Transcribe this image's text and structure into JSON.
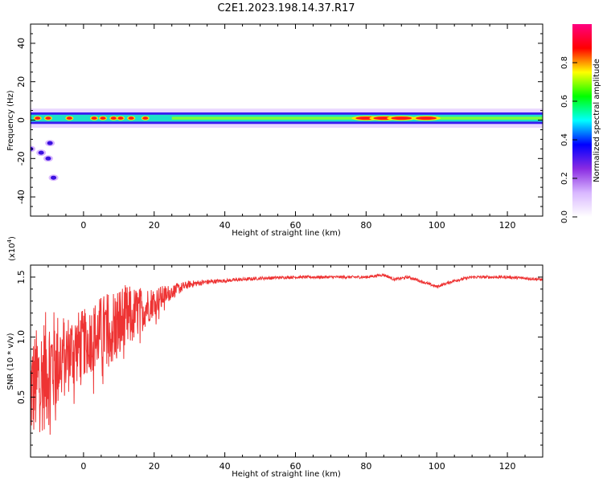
{
  "title": "C2E1.2023.198.14.37.R17",
  "chart_data": [
    {
      "type": "heatmap",
      "xlabel": "Height of straight line (km)",
      "ylabel": "Frequency (Hz)",
      "xlim": [
        -15,
        130
      ],
      "ylim": [
        -50,
        50
      ],
      "xticks": [
        0,
        20,
        40,
        60,
        80,
        100,
        120
      ],
      "yticks": [
        -40,
        -20,
        0,
        20,
        40
      ],
      "colorbar": {
        "label": "Normalized spectral amplitude",
        "range": [
          0,
          1
        ],
        "ticks": [
          "0.0",
          "0.2",
          "0.4",
          "0.6",
          "0.8"
        ],
        "colors": [
          "#ffffff",
          "#d9b8ff",
          "#8a2be2",
          "#0000ff",
          "#00ffff",
          "#00ff00",
          "#ffff00",
          "#ff0000",
          "#ff0080"
        ]
      },
      "band": {
        "center_hz": 1,
        "half_width_hz": 3,
        "peaks_km": [
          -13,
          -10,
          -4,
          3,
          5.5,
          8.5,
          10.5,
          13.5,
          17.5,
          80,
          85,
          90,
          97
        ],
        "low_freq_blobs": [
          {
            "x": -15,
            "y": -15
          },
          {
            "x": -12,
            "y": -17
          },
          {
            "x": -10,
            "y": -20
          },
          {
            "x": -9.5,
            "y": -12
          },
          {
            "x": -8.5,
            "y": -30
          }
        ]
      }
    },
    {
      "type": "line",
      "xlabel": "Height of straight line (km)",
      "ylabel": "SNR (10 * v/v)",
      "multiplier": "(x10",
      "multiplier_exp": "4",
      "xlim": [
        -15,
        130
      ],
      "ylim": [
        0,
        1.6
      ],
      "xticks": [
        0,
        20,
        40,
        60,
        80,
        100,
        120
      ],
      "yticks": [
        0.5,
        1.0,
        1.5
      ],
      "yticklabels": [
        "0.5",
        "1.0",
        "1.5"
      ],
      "color": "#ee3333",
      "trend": {
        "x": [
          -15,
          -10,
          -5,
          0,
          5,
          10,
          15,
          20,
          25,
          30,
          35,
          40,
          50,
          60,
          70,
          80,
          85,
          88,
          92,
          95,
          100,
          105,
          110,
          120,
          130
        ],
        "y": [
          0.55,
          0.75,
          0.85,
          0.95,
          1.05,
          1.1,
          1.2,
          1.3,
          1.38,
          1.44,
          1.46,
          1.47,
          1.49,
          1.5,
          1.5,
          1.5,
          1.52,
          1.48,
          1.5,
          1.47,
          1.42,
          1.47,
          1.5,
          1.5,
          1.48
        ]
      },
      "noise": {
        "x": [
          -15,
          -10,
          -5,
          0,
          5,
          10,
          15,
          20,
          25,
          30,
          35,
          40,
          60,
          130
        ],
        "amp": [
          0.45,
          0.5,
          0.35,
          0.28,
          0.3,
          0.35,
          0.22,
          0.12,
          0.06,
          0.03,
          0.02,
          0.015,
          0.012,
          0.012
        ]
      }
    }
  ]
}
